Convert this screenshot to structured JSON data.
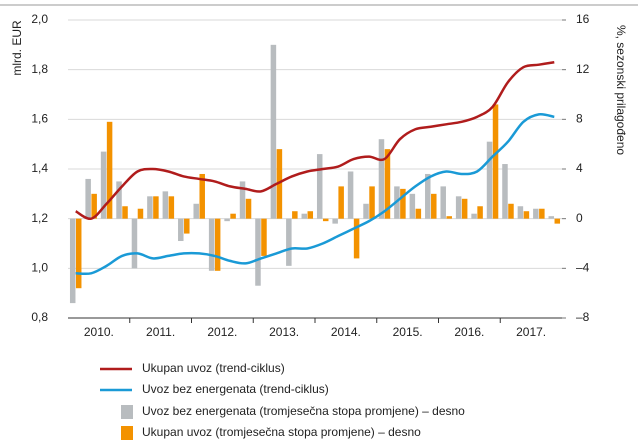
{
  "chart_data": {
    "type": "combo",
    "ylabel": "mlrd. EUR",
    "y2label": "%, sezonski prilagođeno",
    "categories": [
      "2010.",
      null,
      null,
      null,
      "2011.",
      null,
      null,
      null,
      "2012.",
      null,
      null,
      null,
      "2013.",
      null,
      null,
      null,
      "2014.",
      null,
      null,
      null,
      "2015.",
      null,
      null,
      null,
      "2016.",
      null,
      null,
      null,
      "2017.",
      null,
      null,
      null
    ],
    "ylim": [
      0.8,
      2.0
    ],
    "yticks": [
      {
        "value": 0.8,
        "label": "0,8"
      },
      {
        "value": 1.0,
        "label": "1,0"
      },
      {
        "value": 1.2,
        "label": "1,2"
      },
      {
        "value": 1.4,
        "label": "1,4"
      },
      {
        "value": 1.6,
        "label": "1,6"
      },
      {
        "value": 1.8,
        "label": "1,8"
      },
      {
        "value": 2.0,
        "label": "2,0"
      }
    ],
    "y2lim": [
      -8,
      16
    ],
    "y2ticks": [
      {
        "value": -8,
        "label": "–8"
      },
      {
        "value": -4,
        "label": "–4"
      },
      0,
      4,
      8,
      12,
      16
    ],
    "grid": true,
    "series": [
      {
        "name": "Ukupan uvoz (trend-ciklus)",
        "type": "line",
        "color": "#b01c1c",
        "values": [
          1.23,
          1.2,
          1.26,
          1.33,
          1.39,
          1.4,
          1.39,
          1.37,
          1.36,
          1.35,
          1.33,
          1.32,
          1.31,
          1.34,
          1.37,
          1.39,
          1.4,
          1.41,
          1.44,
          1.45,
          1.44,
          1.52,
          1.56,
          1.57,
          1.58,
          1.59,
          1.61,
          1.65,
          1.75,
          1.81,
          1.82,
          1.83
        ]
      },
      {
        "name": "Uvoz bez energenata (trend-ciklus)",
        "type": "line",
        "color": "#1a9ad6",
        "values": [
          0.98,
          0.98,
          1.01,
          1.05,
          1.06,
          1.04,
          1.05,
          1.06,
          1.06,
          1.05,
          1.03,
          1.02,
          1.04,
          1.06,
          1.08,
          1.08,
          1.1,
          1.13,
          1.16,
          1.19,
          1.23,
          1.28,
          1.33,
          1.37,
          1.39,
          1.38,
          1.39,
          1.45,
          1.51,
          1.59,
          1.62,
          1.61
        ]
      },
      {
        "name": "Uvoz bez energenata (tromjesečna stopa promjene) – desno",
        "type": "bar",
        "axis": "y2",
        "color": "#b8bcbf",
        "values": [
          -6.8,
          3.2,
          5.4,
          3.0,
          -4.0,
          1.8,
          2.2,
          -1.8,
          1.2,
          -4.2,
          -0.2,
          3.0,
          -5.4,
          14.0,
          -3.8,
          0.4,
          5.2,
          -0.4,
          3.8,
          1.2,
          6.4,
          2.6,
          2.0,
          3.6,
          2.6,
          1.8,
          0.4,
          6.2,
          4.4,
          1.0,
          0.8,
          0.2
        ]
      },
      {
        "name": "Ukupan uvoz (tromjesečna stopa promjene) – desno",
        "type": "bar",
        "axis": "y2",
        "color": "#f39200",
        "values": [
          -5.6,
          2.0,
          7.8,
          1.0,
          0.8,
          1.8,
          1.8,
          -1.2,
          3.6,
          -4.2,
          0.4,
          1.6,
          -3.0,
          5.6,
          0.6,
          0.6,
          -0.2,
          2.6,
          -3.2,
          2.6,
          5.6,
          2.4,
          0.8,
          2.0,
          0.2,
          1.6,
          1.0,
          9.2,
          1.2,
          0.6,
          0.8,
          -0.4
        ]
      }
    ]
  }
}
